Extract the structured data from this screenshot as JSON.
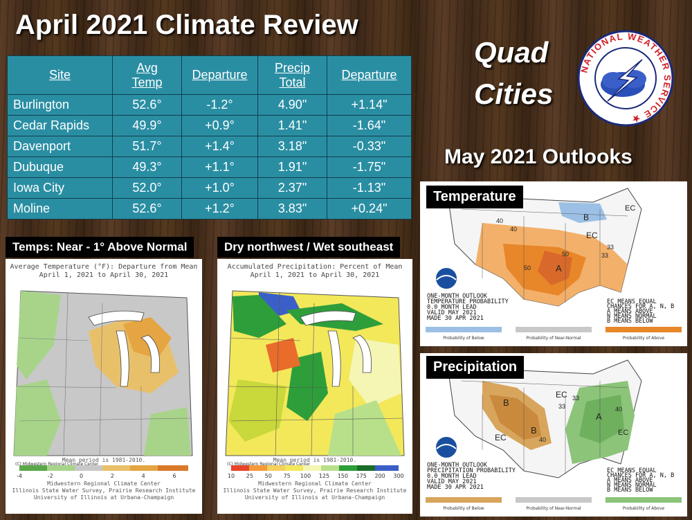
{
  "title": "April 2021 Climate Review",
  "location": [
    "Quad",
    "Cities"
  ],
  "outlook_heading": "May 2021 Outlooks",
  "table": {
    "headers": [
      [
        "Site"
      ],
      [
        "Avg",
        "Temp"
      ],
      [
        "Departure"
      ],
      [
        "Precip",
        "Total"
      ],
      [
        "Departure"
      ]
    ],
    "rows": [
      [
        "Burlington",
        "52.6°",
        "-1.2°",
        "4.90\"",
        "+1.14\""
      ],
      [
        "Cedar Rapids",
        "49.9°",
        "+0.9°",
        "1.41\"",
        "-1.64\""
      ],
      [
        "Davenport",
        "51.7°",
        "+1.4°",
        "3.18\"",
        "-0.33\""
      ],
      [
        "Dubuque",
        "49.3°",
        "+1.1°",
        "1.91\"",
        "-1.75\""
      ],
      [
        "Iowa City",
        "52.0°",
        "+1.0°",
        "2.37\"",
        "-1.13\""
      ],
      [
        "Moline",
        "52.6°",
        "+1.2°",
        "3.83\"",
        "+0.24\""
      ]
    ]
  },
  "temp_map": {
    "caption": "Temps: Near - 1° Above Normal",
    "title_line1": "Average Temperature (°F): Departure from Mean",
    "title_line2": "April 1, 2021 to April 30, 2021",
    "corner": "(C) Midwestern Regional Climate Center",
    "mean_period": "Mean period is 1981-2010.",
    "scale": [
      "-4",
      "-2",
      "0",
      "2",
      "4",
      "6"
    ],
    "credit": [
      "Midwestern Regional Climate Center",
      "Illinois State Water Survey, Prairie Research Institute",
      "University of Illinois at Urbana-Champaign"
    ]
  },
  "precip_map": {
    "caption": "Dry northwest / Wet southeast",
    "title_line1": "Accumulated Precipitation: Percent of Mean",
    "title_line2": "April 1, 2021 to April 30, 2021",
    "corner": "(C) Midwestern Regional Climate Center",
    "mean_period": "Mean period is 1981-2010.",
    "scale": [
      "10",
      "25",
      "50",
      "75",
      "100",
      "125",
      "150",
      "175",
      "200",
      "300"
    ],
    "credit": [
      "Midwestern Regional Climate Center",
      "Illinois State Water Survey, Prairie Research Institute",
      "University of Illinois at Urbana-Champaign"
    ]
  },
  "temp_outlook": {
    "caption": "Temperature",
    "text": [
      "ONE-MONTH OUTLOOK",
      "TEMPERATURE PROBABILITY",
      "0.0 MONTH LEAD",
      "VALID MAY 2021",
      "MADE 30 APR 2021"
    ],
    "legend": [
      "EC MEANS EQUAL",
      "CHANCES FOR A, N, B",
      "A MEANS ABOVE",
      "N MEANS NORMAL",
      "B MEANS BELOW"
    ],
    "bar_labels": [
      "Probability of Below",
      "Probability of Near-Normal",
      "Probability of Above"
    ],
    "map_labels": [
      "B",
      "EC",
      "EC",
      "A",
      "40",
      "50",
      "33",
      "40",
      "50",
      "33"
    ]
  },
  "precip_outlook": {
    "caption": "Precipitation",
    "text": [
      "ONE-MONTH OUTLOOK",
      "PRECIPITATION PROBABILITY",
      "0.0 MONTH LEAD",
      "VALID MAY 2021",
      "MADE 30 APR 2021"
    ],
    "legend": [
      "EC MEANS EQUAL",
      "CHANCES FOR A, N, B",
      "A MEANS ABOVE",
      "N MEANS NORMAL",
      "B MEANS BELOW"
    ],
    "bar_labels": [
      "Probability of Below",
      "Probability of Near-Normal",
      "Probability of Above"
    ],
    "map_labels": [
      "B",
      "B",
      "EC",
      "EC",
      "A",
      "EC",
      "40",
      "33",
      "33",
      "40"
    ]
  },
  "logo": {
    "text": "NATIONAL WEATHER SERVICE"
  },
  "colors": {
    "table_bg": "#2a8ea3",
    "temp_above": "#e8862a",
    "precip_above": "#8cc47a",
    "precip_below": "#d8a55c"
  }
}
